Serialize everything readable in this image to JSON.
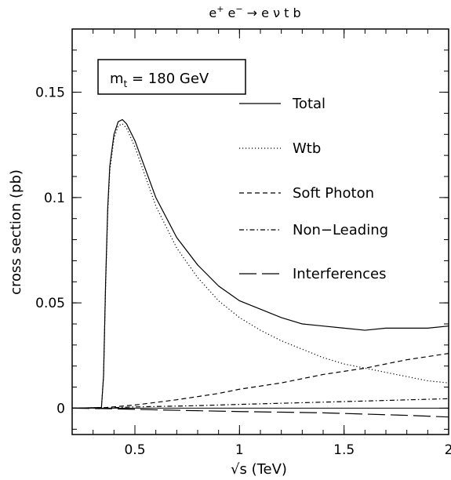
{
  "chart_data": {
    "type": "line",
    "title": {
      "parts": [
        "e",
        "+",
        " e",
        "−",
        " → e ν t b"
      ]
    },
    "xlabel": "√s (TeV)",
    "ylabel": "cross section (pb)",
    "xlim": [
      0.2,
      2.0
    ],
    "ylim": [
      -0.0125,
      0.18
    ],
    "x_ticks": [
      0.5,
      1,
      1.5,
      2
    ],
    "x_tick_labels": [
      "0.5",
      "1",
      "1.5",
      "2"
    ],
    "y_ticks": [
      0,
      0.05,
      0.1,
      0.15
    ],
    "y_tick_labels": [
      "0",
      "0.05",
      "0.1",
      "0.15"
    ],
    "grid": false,
    "legend_position": "right",
    "annotation": {
      "main": "m",
      "sub": "t",
      "rest": " = 180 GeV"
    },
    "series": [
      {
        "name": "Total",
        "style": "solid",
        "points": [
          [
            0.2,
            0.0
          ],
          [
            0.34,
            0.0003
          ],
          [
            0.35,
            0.015
          ],
          [
            0.36,
            0.06
          ],
          [
            0.37,
            0.095
          ],
          [
            0.38,
            0.115
          ],
          [
            0.4,
            0.13
          ],
          [
            0.42,
            0.136
          ],
          [
            0.44,
            0.137
          ],
          [
            0.46,
            0.135
          ],
          [
            0.5,
            0.127
          ],
          [
            0.6,
            0.1
          ],
          [
            0.7,
            0.081
          ],
          [
            0.8,
            0.068
          ],
          [
            0.9,
            0.058
          ],
          [
            1.0,
            0.051
          ],
          [
            1.1,
            0.047
          ],
          [
            1.2,
            0.043
          ],
          [
            1.3,
            0.04
          ],
          [
            1.4,
            0.039
          ],
          [
            1.5,
            0.038
          ],
          [
            1.6,
            0.037
          ],
          [
            1.7,
            0.038
          ],
          [
            1.8,
            0.038
          ],
          [
            1.9,
            0.038
          ],
          [
            2.0,
            0.039
          ]
        ]
      },
      {
        "name": "Wtb",
        "style": "dotted",
        "points": [
          [
            0.2,
            0.0
          ],
          [
            0.34,
            0.0003
          ],
          [
            0.35,
            0.015
          ],
          [
            0.36,
            0.058
          ],
          [
            0.37,
            0.093
          ],
          [
            0.38,
            0.113
          ],
          [
            0.4,
            0.128
          ],
          [
            0.42,
            0.134
          ],
          [
            0.44,
            0.135
          ],
          [
            0.46,
            0.133
          ],
          [
            0.5,
            0.124
          ],
          [
            0.6,
            0.096
          ],
          [
            0.7,
            0.076
          ],
          [
            0.8,
            0.062
          ],
          [
            0.9,
            0.051
          ],
          [
            1.0,
            0.043
          ],
          [
            1.1,
            0.037
          ],
          [
            1.2,
            0.032
          ],
          [
            1.3,
            0.028
          ],
          [
            1.4,
            0.024
          ],
          [
            1.5,
            0.021
          ],
          [
            1.6,
            0.019
          ],
          [
            1.7,
            0.017
          ],
          [
            1.8,
            0.015
          ],
          [
            1.9,
            0.013
          ],
          [
            2.0,
            0.012
          ]
        ]
      },
      {
        "name": "Soft Photon",
        "style": "dashed",
        "points": [
          [
            0.2,
            0.0
          ],
          [
            0.35,
            0.0002
          ],
          [
            0.5,
            0.0015
          ],
          [
            0.7,
            0.004
          ],
          [
            0.9,
            0.007
          ],
          [
            1.0,
            0.009
          ],
          [
            1.2,
            0.012
          ],
          [
            1.4,
            0.016
          ],
          [
            1.6,
            0.019
          ],
          [
            1.8,
            0.023
          ],
          [
            2.0,
            0.026
          ]
        ]
      },
      {
        "name": "Non−Leading",
        "style": "dashdot",
        "points": [
          [
            0.2,
            0.0
          ],
          [
            0.35,
            0.0001
          ],
          [
            0.5,
            0.0006
          ],
          [
            0.8,
            0.0012
          ],
          [
            1.0,
            0.0018
          ],
          [
            1.3,
            0.0026
          ],
          [
            1.6,
            0.0034
          ],
          [
            2.0,
            0.0045
          ]
        ]
      },
      {
        "name": "Interferences",
        "style": "longdash",
        "points": [
          [
            0.2,
            0.0
          ],
          [
            0.4,
            -0.0003
          ],
          [
            0.6,
            -0.0008
          ],
          [
            0.8,
            -0.0012
          ],
          [
            1.0,
            -0.0016
          ],
          [
            1.2,
            -0.0019
          ],
          [
            1.4,
            -0.0022
          ],
          [
            1.6,
            -0.0028
          ],
          [
            1.8,
            -0.0034
          ],
          [
            2.0,
            -0.0042
          ]
        ]
      }
    ]
  }
}
